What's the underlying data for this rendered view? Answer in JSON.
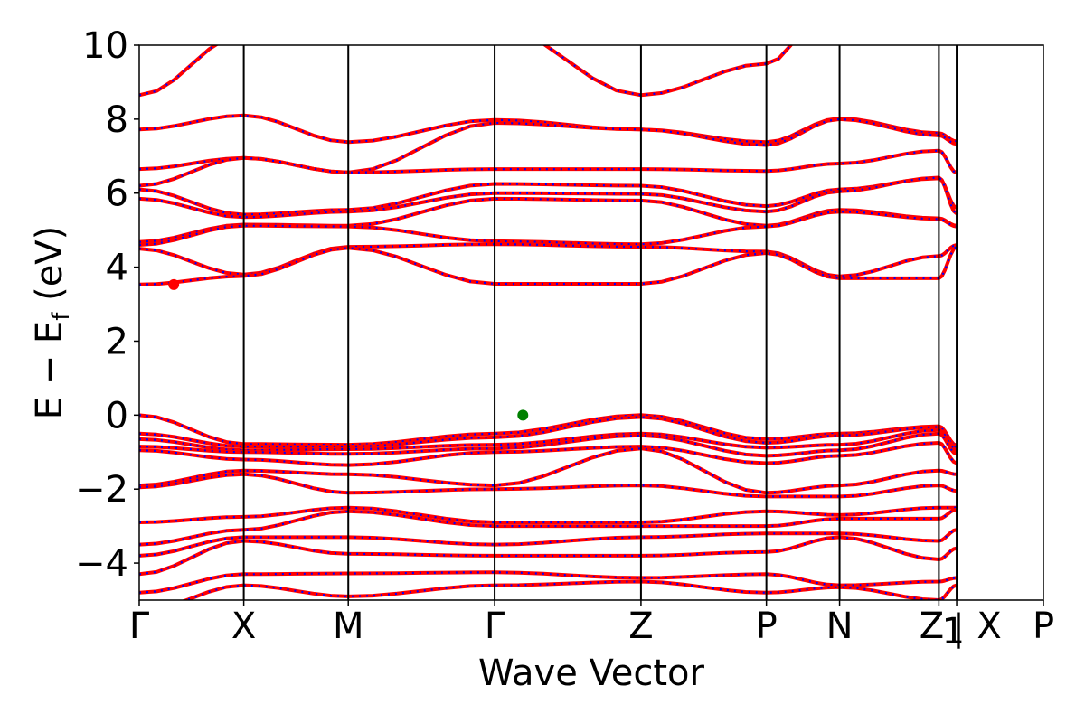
{
  "chart_data": {
    "type": "line",
    "xlabel": "Wave Vector",
    "ylabel": "E − E",
    "ylabel_sub": "f",
    "ylabel_unit": " (eV)",
    "ylim": [
      -5,
      10
    ],
    "yticks": [
      -4,
      -2,
      0,
      2,
      4,
      6,
      8,
      10
    ],
    "ytick_labels": [
      "−4",
      "−2",
      "0",
      "2",
      "4",
      "6",
      "8",
      "10"
    ],
    "grid": false,
    "kpath_units": [
      0,
      1.0,
      2.0,
      3.4,
      4.8,
      6.0,
      6.7,
      7.65,
      7.82,
      8.65
    ],
    "kpoint_labels": [
      "Γ",
      "X",
      "M",
      "Γ",
      "Z",
      "P",
      "N",
      "Z",
      "1",
      "X",
      "P"
    ],
    "kpath_break_after": "Z₁",
    "style": {
      "band_color": "#ff0000",
      "overlay_color": "#0000ff"
    },
    "markers": [
      {
        "name": "conduction band minimum",
        "x": 0.33,
        "y": 3.53,
        "color": "#ff0000"
      },
      {
        "name": "valence band maximum",
        "x": 3.67,
        "y": 0.0,
        "color": "#008000"
      }
    ],
    "bands": [
      [
        8.65,
        10.3,
        11.4,
        10.5,
        8.65,
        9.5,
        11.5,
        12.5,
        12.0,
        11.8,
        11.5
      ],
      [
        7.72,
        8.1,
        7.38,
        7.98,
        7.72,
        7.38,
        8.02,
        7.62,
        7.4,
        8.1,
        8.0
      ],
      [
        6.65,
        6.95,
        6.56,
        7.9,
        7.72,
        7.3,
        8.0,
        7.56,
        7.33,
        6.95,
        6.8
      ],
      [
        6.2,
        6.95,
        6.56,
        6.65,
        6.65,
        6.6,
        6.8,
        7.15,
        6.55,
        6.0,
        6.0
      ],
      [
        6.1,
        5.42,
        5.55,
        6.25,
        6.2,
        5.65,
        6.1,
        6.4,
        5.6,
        5.45,
        5.55
      ],
      [
        5.85,
        5.35,
        5.5,
        6.0,
        5.98,
        5.5,
        6.05,
        6.42,
        5.45,
        5.35,
        5.5
      ],
      [
        4.68,
        5.15,
        5.12,
        5.85,
        5.8,
        5.12,
        5.55,
        5.32,
        5.12,
        5.1,
        5.2
      ],
      [
        4.6,
        5.12,
        5.1,
        4.7,
        4.62,
        5.1,
        5.5,
        5.3,
        5.1,
        4.55,
        4.6
      ],
      [
        4.5,
        3.8,
        4.55,
        4.62,
        4.55,
        4.42,
        3.75,
        4.3,
        4.6,
        3.78,
        3.75
      ],
      [
        3.53,
        3.76,
        4.52,
        3.55,
        3.55,
        4.38,
        3.7,
        3.7,
        4.55,
        3.76,
        3.75
      ],
      [
        0.0,
        -0.78,
        -0.8,
        -0.5,
        0.0,
        -0.65,
        -0.5,
        -0.3,
        -0.82,
        -0.78,
        -0.55
      ],
      [
        -0.5,
        -0.85,
        -0.85,
        -0.6,
        -0.05,
        -0.75,
        -0.55,
        -0.32,
        -0.88,
        -0.85,
        -0.6
      ],
      [
        -0.65,
        -0.95,
        -0.92,
        -0.8,
        -0.5,
        -0.88,
        -0.8,
        -0.4,
        -0.95,
        -0.92,
        -0.7
      ],
      [
        -0.85,
        -1.0,
        -1.05,
        -0.9,
        -0.55,
        -1.1,
        -0.95,
        -0.5,
        -1.05,
        -1.0,
        -0.95
      ],
      [
        -0.95,
        -1.2,
        -1.35,
        -1.0,
        -0.85,
        -1.3,
        -1.1,
        -0.75,
        -1.3,
        -1.25,
        -1.3
      ],
      [
        -1.9,
        -1.5,
        -1.6,
        -1.9,
        -0.9,
        -2.1,
        -1.9,
        -1.5,
        -1.6,
        -1.55,
        -1.8
      ],
      [
        -1.95,
        -1.6,
        -2.1,
        -2.0,
        -1.9,
        -2.2,
        -2.2,
        -1.9,
        -2.05,
        -2.0,
        -1.95
      ],
      [
        -2.9,
        -2.75,
        -2.5,
        -2.9,
        -2.9,
        -2.6,
        -2.7,
        -2.5,
        -2.5,
        -2.7,
        -2.7
      ],
      [
        -3.5,
        -3.1,
        -2.6,
        -3.0,
        -3.0,
        -3.0,
        -2.8,
        -2.8,
        -2.55,
        -3.2,
        -3.2
      ],
      [
        -3.8,
        -3.3,
        -3.3,
        -3.5,
        -3.3,
        -3.2,
        -3.2,
        -3.4,
        -3.1,
        -3.3,
        -3.3
      ],
      [
        -4.3,
        -3.4,
        -3.75,
        -3.8,
        -3.8,
        -3.7,
        -3.3,
        -3.9,
        -3.6,
        -4.25,
        -4.6
      ],
      [
        -4.8,
        -4.3,
        -4.28,
        -4.25,
        -4.4,
        -4.3,
        -4.6,
        -4.5,
        -4.4,
        -4.3,
        -4.6
      ],
      [
        -5.3,
        -4.6,
        -4.9,
        -4.6,
        -4.5,
        -4.8,
        -4.65,
        -5.0,
        -4.6,
        -4.35,
        -4.65
      ]
    ]
  }
}
